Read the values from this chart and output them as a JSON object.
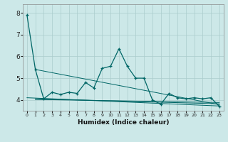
{
  "xlabel": "Humidex (Indice chaleur)",
  "background_color": "#cce8e8",
  "grid_color": "#aacccc",
  "line_color": "#006666",
  "xlim": [
    -0.5,
    23.5
  ],
  "ylim": [
    3.5,
    8.4
  ],
  "yticks": [
    4,
    5,
    6,
    7,
    8
  ],
  "xtick_labels": [
    "0",
    "1",
    "2",
    "3",
    "4",
    "5",
    "6",
    "7",
    "8",
    "9",
    "10",
    "11",
    "12",
    "13",
    "14",
    "15",
    "16",
    "17",
    "18",
    "19",
    "20",
    "21",
    "22",
    "23"
  ],
  "main_series_x": [
    0,
    1,
    2,
    3,
    4,
    5,
    6,
    7,
    8,
    9,
    10,
    11,
    12,
    13,
    14,
    15,
    16,
    17,
    18,
    19,
    20,
    21,
    22,
    23
  ],
  "main_series_y": [
    7.9,
    5.4,
    4.05,
    4.35,
    4.25,
    4.35,
    4.3,
    4.8,
    4.55,
    5.45,
    5.55,
    6.35,
    5.55,
    5.0,
    5.0,
    4.0,
    3.8,
    4.3,
    4.1,
    4.05,
    4.1,
    4.05,
    4.1,
    3.7
  ],
  "ref_lines": [
    {
      "x": [
        0,
        23
      ],
      "y": [
        4.1,
        3.72
      ]
    },
    {
      "x": [
        1,
        23
      ],
      "y": [
        5.4,
        3.78
      ]
    },
    {
      "x": [
        1,
        23
      ],
      "y": [
        4.05,
        3.82
      ]
    },
    {
      "x": [
        1,
        23
      ],
      "y": [
        4.02,
        3.88
      ]
    }
  ]
}
